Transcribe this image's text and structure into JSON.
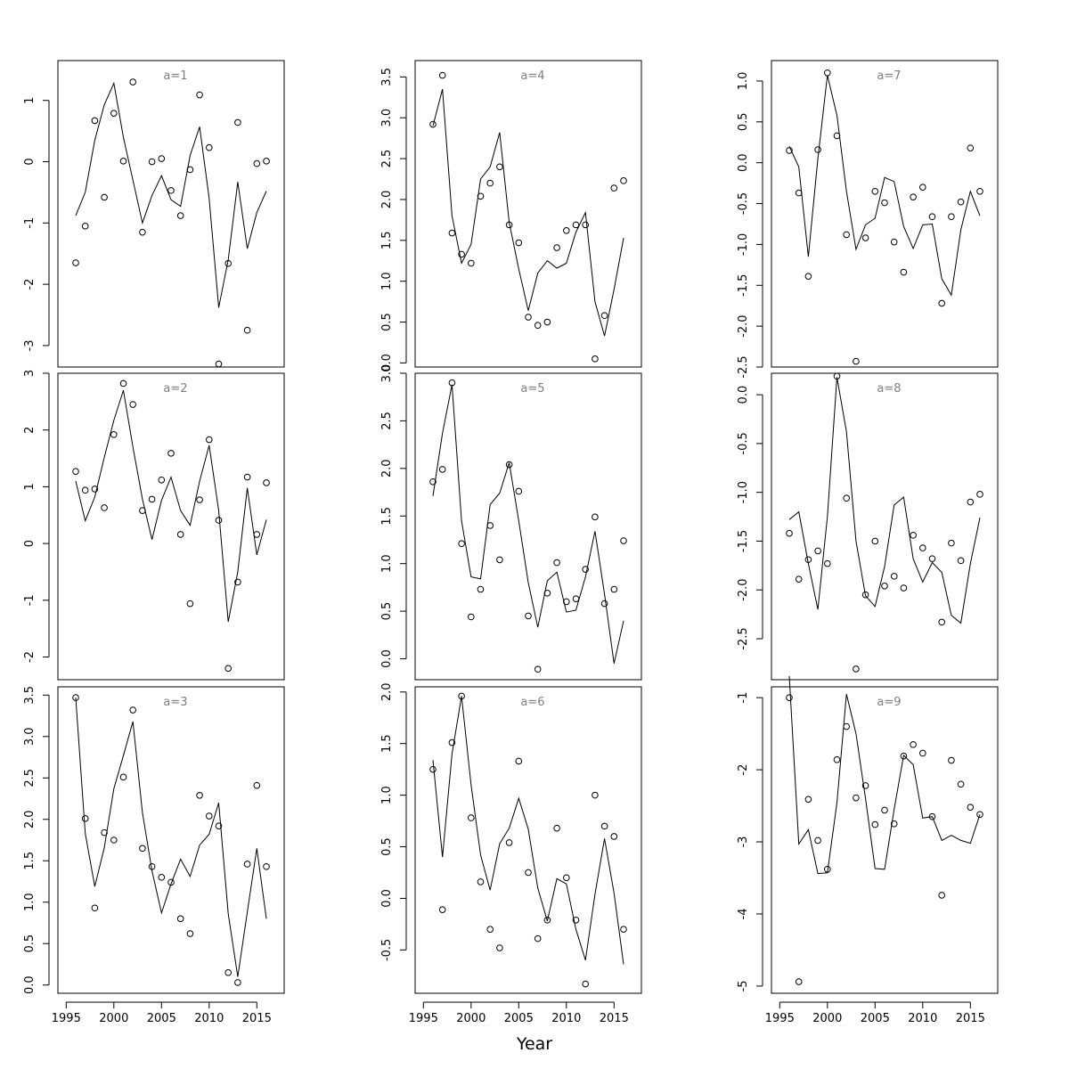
{
  "chart_data": {
    "type": "scatter",
    "xlabel": "Year",
    "xlim": [
      1996,
      2016
    ],
    "xticks": [
      1995,
      2000,
      2005,
      2010,
      2015
    ],
    "years": [
      1996,
      1997,
      1998,
      1999,
      2000,
      2001,
      2002,
      2003,
      2004,
      2005,
      2006,
      2007,
      2008,
      2009,
      2010,
      2011,
      2012,
      2013,
      2014,
      2015,
      2016
    ],
    "panels": [
      {
        "title": "a=1",
        "ylim": [
          -3.35,
          1.65
        ],
        "yticks": [
          -3,
          -2,
          -1,
          0,
          1
        ],
        "points": [
          -1.65,
          -1.05,
          0.67,
          -0.58,
          0.79,
          0.01,
          1.3,
          -1.15,
          0.0,
          0.05,
          -0.47,
          -0.88,
          -0.13,
          1.09,
          0.23,
          -3.3,
          -1.66,
          0.64,
          -2.75,
          -0.03,
          0.01
        ],
        "line": [
          -0.88,
          -0.5,
          0.35,
          0.93,
          1.28,
          0.4,
          -0.3,
          -1.0,
          -0.55,
          -0.23,
          -0.62,
          -0.73,
          0.1,
          0.57,
          -0.6,
          -2.38,
          -1.6,
          -0.33,
          -1.42,
          -0.83,
          -0.48
        ]
      },
      {
        "title": "a=4",
        "ylim": [
          -0.05,
          3.7
        ],
        "yticks": [
          0.0,
          0.5,
          1.0,
          1.5,
          2.0,
          2.5,
          3.0,
          3.5
        ],
        "points": [
          2.92,
          3.52,
          1.59,
          1.33,
          1.22,
          2.04,
          2.2,
          2.4,
          1.69,
          1.47,
          0.56,
          0.46,
          0.5,
          1.41,
          1.62,
          1.69,
          1.69,
          0.05,
          0.58,
          2.14,
          2.23
        ],
        "line": [
          2.9,
          3.35,
          1.8,
          1.22,
          1.45,
          2.25,
          2.4,
          2.82,
          1.72,
          1.15,
          0.64,
          1.1,
          1.25,
          1.16,
          1.22,
          1.6,
          1.84,
          0.75,
          0.33,
          0.9,
          1.53
        ]
      },
      {
        "title": "a=7",
        "ylim": [
          -2.5,
          1.25
        ],
        "yticks": [
          -2.5,
          -2.0,
          -1.5,
          -1.0,
          -0.5,
          0.0,
          0.5,
          1.0
        ],
        "points": [
          0.15,
          -0.37,
          -1.39,
          0.16,
          1.1,
          0.33,
          -0.88,
          -2.43,
          -0.92,
          -0.35,
          -0.49,
          -0.97,
          -1.34,
          -0.42,
          -0.3,
          -0.66,
          -1.72,
          -0.66,
          -0.48,
          0.18,
          -0.35
        ],
        "line": [
          0.2,
          -0.05,
          -1.15,
          0.05,
          1.07,
          0.58,
          -0.35,
          -1.06,
          -0.76,
          -0.68,
          -0.18,
          -0.23,
          -0.78,
          -1.05,
          -0.76,
          -0.75,
          -1.42,
          -1.62,
          -0.82,
          -0.35,
          -0.65
        ]
      },
      {
        "title": "a=2",
        "ylim": [
          -2.4,
          3.0
        ],
        "yticks": [
          -2,
          -1,
          0,
          1,
          2,
          3
        ],
        "points": [
          1.27,
          0.94,
          0.96,
          0.63,
          1.92,
          2.82,
          2.45,
          0.58,
          0.78,
          1.12,
          1.59,
          0.16,
          -1.06,
          0.77,
          1.83,
          0.41,
          -2.2,
          -0.68,
          1.17,
          0.16,
          1.07
        ],
        "line": [
          1.1,
          0.4,
          0.82,
          1.52,
          2.17,
          2.7,
          1.7,
          0.78,
          0.07,
          0.76,
          1.17,
          0.58,
          0.32,
          1.1,
          1.73,
          0.58,
          -1.38,
          -0.5,
          0.98,
          -0.2,
          0.42
        ]
      },
      {
        "title": "a=5",
        "ylim": [
          -0.22,
          3.0
        ],
        "yticks": [
          0.0,
          0.5,
          1.0,
          1.5,
          2.0,
          2.5,
          3.0
        ],
        "points": [
          1.86,
          1.99,
          2.9,
          1.21,
          0.44,
          0.73,
          1.4,
          1.04,
          2.04,
          1.76,
          0.45,
          -0.11,
          0.69,
          1.01,
          0.6,
          0.63,
          0.94,
          1.49,
          0.58,
          0.73,
          1.24
        ],
        "line": [
          1.71,
          2.37,
          2.88,
          1.45,
          0.86,
          0.84,
          1.62,
          1.74,
          2.06,
          1.45,
          0.8,
          0.33,
          0.82,
          0.91,
          0.49,
          0.51,
          0.86,
          1.34,
          0.68,
          -0.05,
          0.4
        ]
      },
      {
        "title": "a=8",
        "ylim": [
          -2.92,
          0.22
        ],
        "yticks": [
          -2.5,
          -2.0,
          -1.5,
          -1.0,
          -0.5,
          0.0
        ],
        "points": [
          -1.42,
          -1.89,
          -1.69,
          -1.6,
          -1.73,
          0.19,
          -1.06,
          -2.81,
          -2.05,
          -1.5,
          -1.96,
          -1.86,
          -1.98,
          -1.44,
          -1.57,
          -1.68,
          -2.33,
          -1.52,
          -1.7,
          -1.1,
          -1.02
        ],
        "line": [
          -1.28,
          -1.2,
          -1.73,
          -2.2,
          -1.25,
          0.18,
          -0.38,
          -1.5,
          -2.06,
          -2.17,
          -1.76,
          -1.13,
          -1.05,
          -1.68,
          -1.92,
          -1.72,
          -1.82,
          -2.26,
          -2.34,
          -1.73,
          -1.26
        ]
      },
      {
        "title": "a=3",
        "ylim": [
          -0.1,
          3.6
        ],
        "yticks": [
          0.0,
          0.5,
          1.0,
          1.5,
          2.0,
          2.5,
          3.0,
          3.5
        ],
        "points": [
          3.47,
          2.01,
          0.93,
          1.84,
          1.75,
          2.51,
          3.32,
          1.65,
          1.43,
          1.3,
          1.24,
          0.8,
          0.62,
          2.29,
          2.04,
          1.92,
          0.15,
          0.03,
          1.46,
          2.41,
          1.43
        ],
        "line": [
          3.47,
          1.83,
          1.19,
          1.66,
          2.37,
          2.77,
          3.18,
          2.08,
          1.38,
          0.87,
          1.22,
          1.52,
          1.31,
          1.69,
          1.82,
          2.2,
          0.86,
          0.1,
          0.88,
          1.65,
          0.8
        ]
      },
      {
        "title": "a=6",
        "ylim": [
          -0.92,
          2.05
        ],
        "yticks": [
          -0.5,
          0.0,
          0.5,
          1.0,
          1.5,
          2.0
        ],
        "points": [
          1.25,
          -0.11,
          1.51,
          1.96,
          0.78,
          0.16,
          -0.3,
          -0.48,
          0.54,
          1.33,
          0.25,
          -0.39,
          -0.21,
          0.68,
          0.2,
          -0.21,
          -0.83,
          1.0,
          0.7,
          0.6,
          -0.3
        ],
        "line": [
          1.34,
          0.4,
          1.4,
          1.96,
          1.1,
          0.42,
          0.08,
          0.53,
          0.68,
          0.97,
          0.67,
          0.1,
          -0.22,
          0.19,
          0.14,
          -0.3,
          -0.6,
          0.04,
          0.58,
          0.05,
          -0.64
        ]
      },
      {
        "title": "a=9",
        "ylim": [
          -5.1,
          -0.85
        ],
        "yticks": [
          -5,
          -4,
          -3,
          -2,
          -1
        ],
        "points": [
          -1.0,
          -4.94,
          -2.41,
          -2.98,
          -3.38,
          -1.86,
          -1.4,
          -2.39,
          -2.22,
          -2.76,
          -2.56,
          -2.75,
          -1.81,
          -1.65,
          -1.77,
          -2.65,
          -3.74,
          -1.87,
          -2.2,
          -2.52,
          -2.62
        ],
        "line": [
          -0.7,
          -3.03,
          -2.83,
          -3.44,
          -3.43,
          -2.46,
          -0.95,
          -1.5,
          -2.4,
          -3.37,
          -3.38,
          -2.55,
          -1.8,
          -1.93,
          -2.67,
          -2.65,
          -2.98,
          -2.91,
          -2.98,
          -3.02,
          -2.62
        ]
      }
    ]
  }
}
